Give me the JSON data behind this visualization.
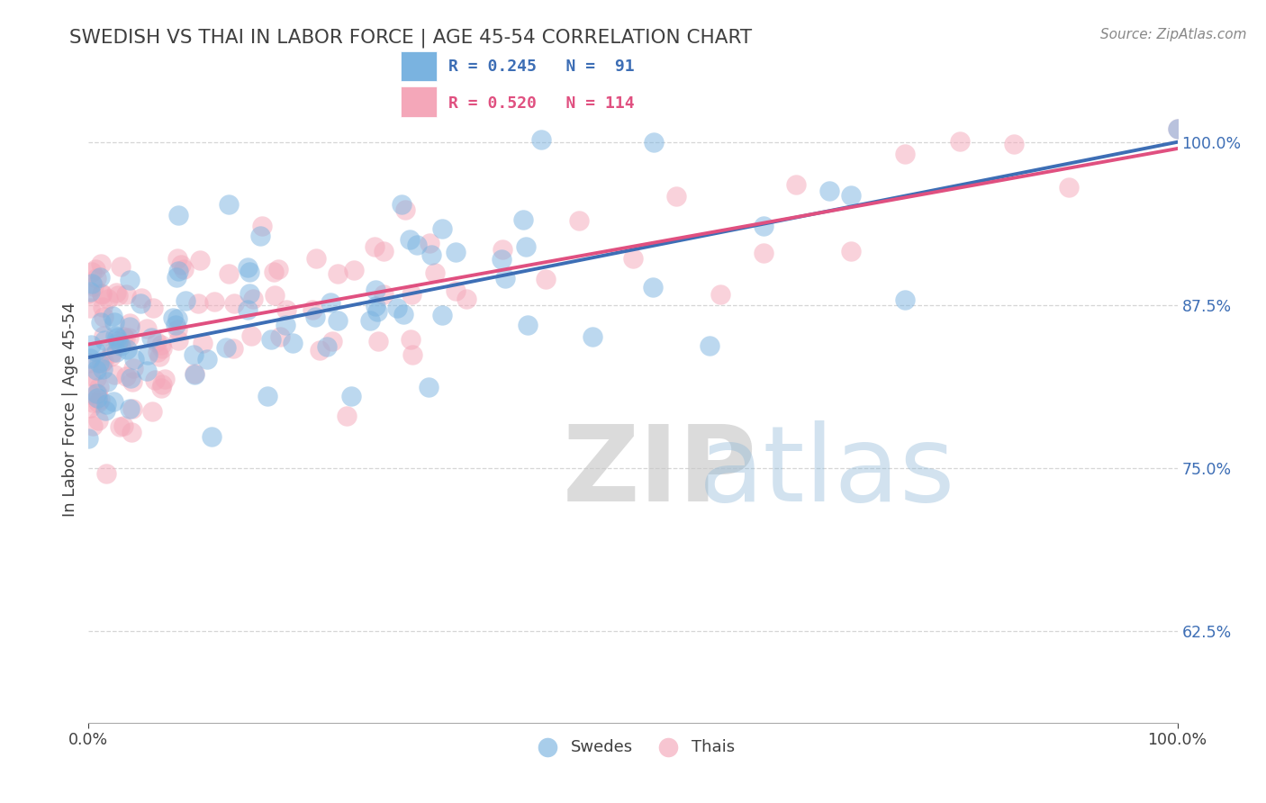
{
  "title": "SWEDISH VS THAI IN LABOR FORCE | AGE 45-54 CORRELATION CHART",
  "source": "Source: ZipAtlas.com",
  "ylabel": "In Labor Force | Age 45-54",
  "xlim": [
    0.0,
    1.0
  ],
  "ylim": [
    0.555,
    1.035
  ],
  "yticks": [
    0.625,
    0.75,
    0.875,
    1.0
  ],
  "ytick_labels": [
    "62.5%",
    "75.0%",
    "87.5%",
    "100.0%"
  ],
  "xticks": [
    0.0,
    1.0
  ],
  "xtick_labels": [
    "0.0%",
    "100.0%"
  ],
  "legend_blue_r": "R = 0.245",
  "legend_blue_n": "N =  91",
  "legend_pink_r": "R = 0.520",
  "legend_pink_n": "N = 114",
  "blue_color": "#7ab3e0",
  "pink_color": "#f4a7b9",
  "blue_line_color": "#3d6eb5",
  "pink_line_color": "#e05080",
  "title_color": "#404040",
  "source_color": "#888888",
  "background_color": "#ffffff",
  "grid_color": "#cccccc",
  "blue_N": 91,
  "pink_N": 114,
  "blue_R": 0.245,
  "pink_R": 0.52,
  "seed": 12345,
  "blue_line_x0": 0.0,
  "blue_line_y0": 0.835,
  "blue_line_x1": 1.0,
  "blue_line_y1": 1.0,
  "pink_line_x0": 0.0,
  "pink_line_y0": 0.845,
  "pink_line_x1": 1.0,
  "pink_line_y1": 0.995
}
